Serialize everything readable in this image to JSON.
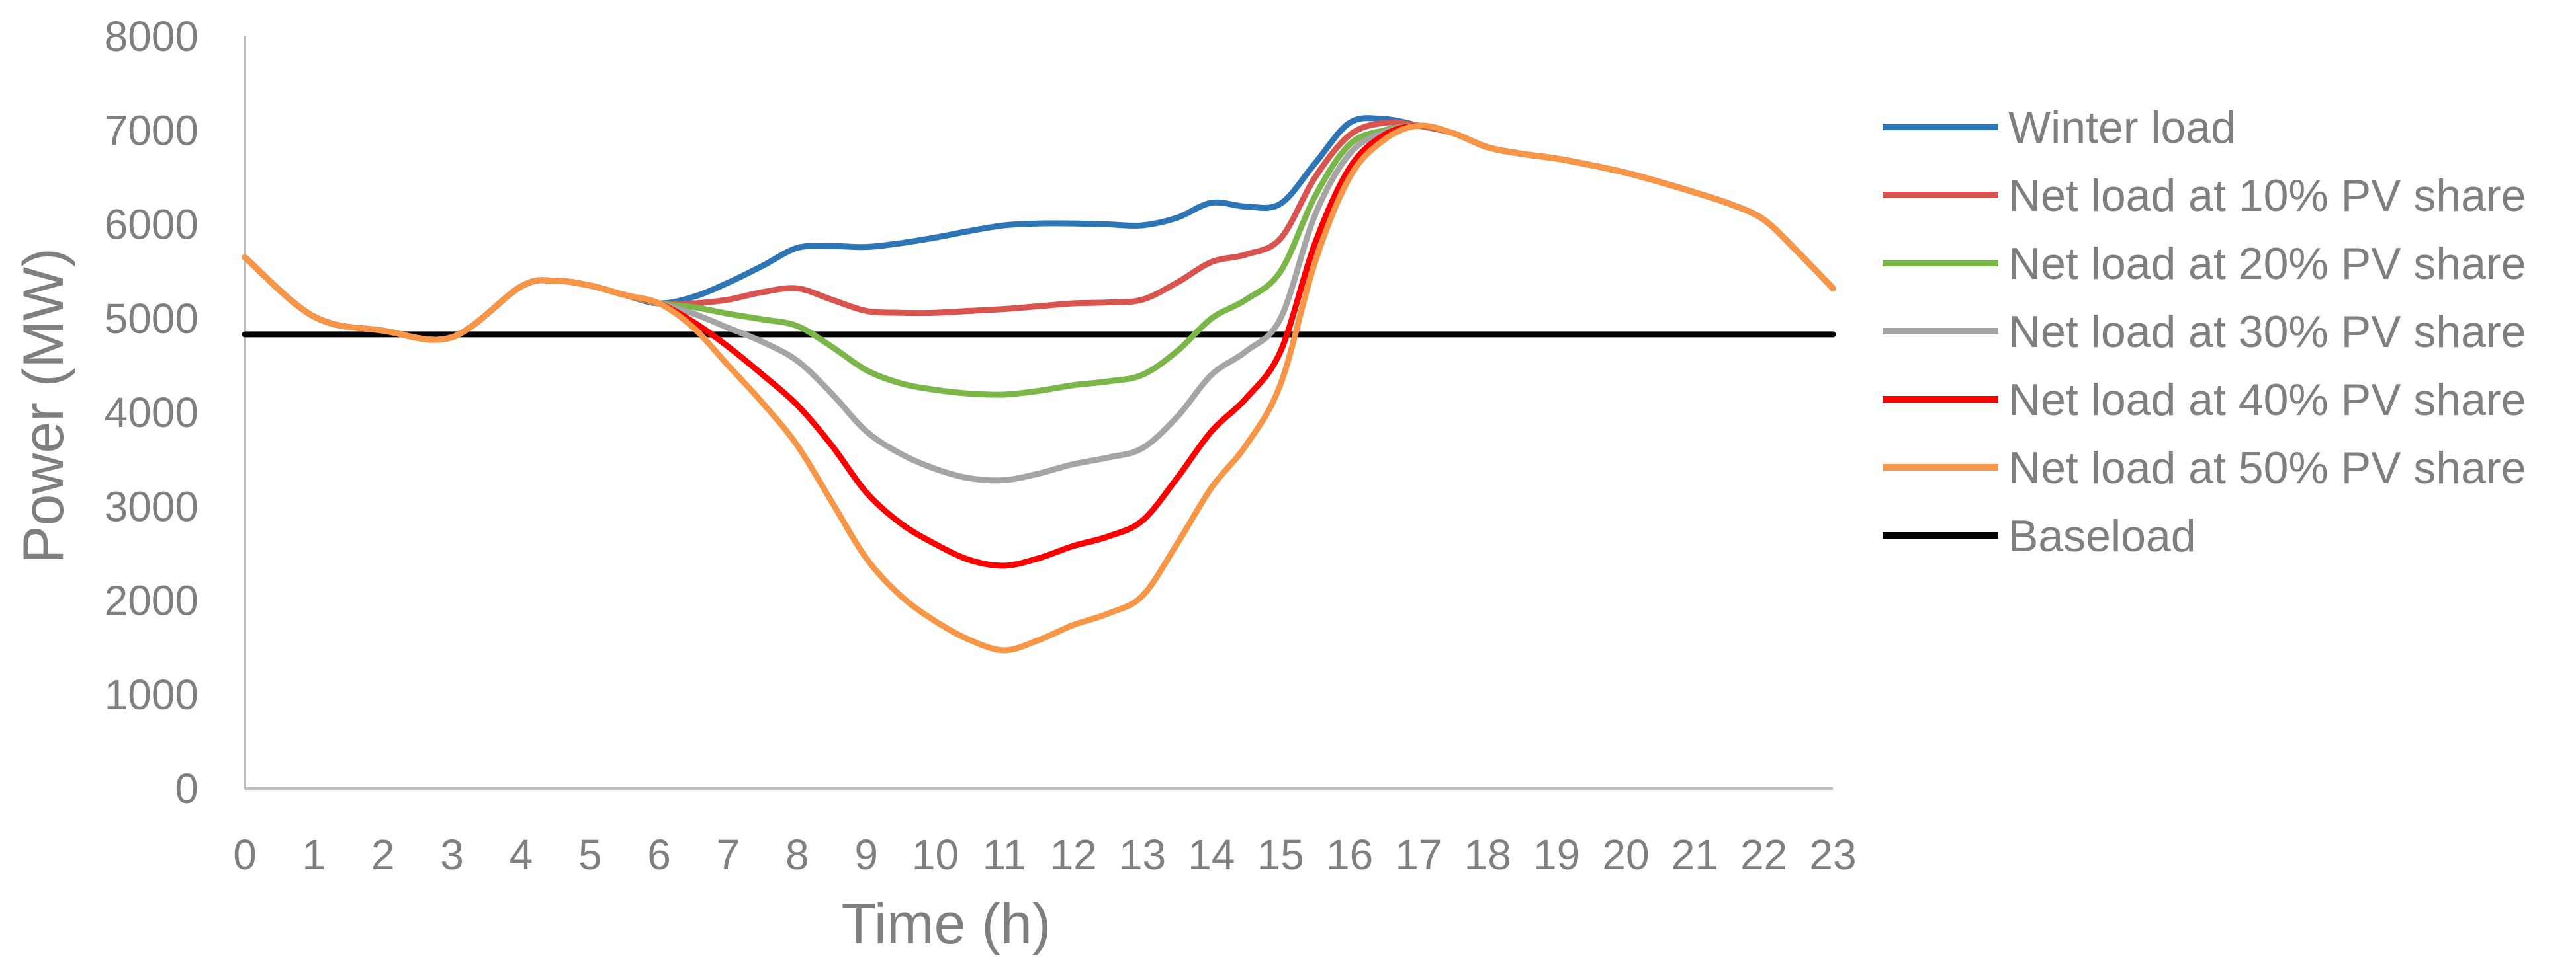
{
  "chart_data": {
    "type": "line",
    "title": "",
    "xlabel": "Time (h)",
    "ylabel": "Power (MW)",
    "xlim": [
      0,
      23
    ],
    "ylim": [
      0,
      8000
    ],
    "x_ticks": [
      0,
      1,
      2,
      3,
      4,
      5,
      6,
      7,
      8,
      9,
      10,
      11,
      12,
      13,
      14,
      15,
      16,
      17,
      18,
      19,
      20,
      21,
      22,
      23
    ],
    "y_ticks": [
      0,
      1000,
      2000,
      3000,
      4000,
      5000,
      6000,
      7000,
      8000
    ],
    "grid": false,
    "legend_position": "right",
    "series": [
      {
        "name": "Winter load",
        "color": "#2e75b6",
        "x": [
          0,
          1,
          2,
          3,
          4,
          4.5,
          5,
          5.5,
          6,
          6.5,
          7,
          7.5,
          8,
          8.5,
          9,
          9.5,
          10,
          10.5,
          11,
          11.5,
          12,
          12.5,
          13,
          13.5,
          14,
          14.5,
          15,
          15.5,
          16,
          16.5,
          17,
          17.5,
          18,
          18.5,
          19,
          19.5,
          20,
          20.5,
          21,
          21.5,
          22,
          22.5,
          23
        ],
        "values": [
          5650,
          5020,
          4870,
          4800,
          5340,
          5400,
          5350,
          5250,
          5160,
          5230,
          5380,
          5560,
          5750,
          5770,
          5760,
          5800,
          5860,
          5930,
          5990,
          6010,
          6010,
          6000,
          5990,
          6070,
          6230,
          6190,
          6220,
          6650,
          7080,
          7120,
          7050,
          6970,
          6820,
          6750,
          6700,
          6630,
          6550,
          6450,
          6340,
          6220,
          6050,
          5700,
          5320
        ]
      },
      {
        "name": "Net load at 10% PV share",
        "color": "#d9534f",
        "x": [
          0,
          1,
          2,
          3,
          4,
          4.5,
          5,
          5.5,
          6,
          6.5,
          7,
          7.5,
          8,
          8.5,
          9,
          9.5,
          10,
          10.5,
          11,
          11.5,
          12,
          12.5,
          13,
          13.5,
          14,
          14.5,
          15,
          15.5,
          16,
          16.5,
          17,
          17.5,
          18,
          18.5,
          19,
          19.5,
          20,
          20.5,
          21,
          21.5,
          22,
          22.5,
          23
        ],
        "values": [
          5650,
          5020,
          4870,
          4800,
          5340,
          5400,
          5350,
          5250,
          5160,
          5160,
          5200,
          5280,
          5320,
          5200,
          5080,
          5060,
          5060,
          5080,
          5100,
          5130,
          5160,
          5170,
          5200,
          5380,
          5600,
          5680,
          5850,
          6500,
          6950,
          7080,
          7050,
          6970,
          6820,
          6750,
          6700,
          6630,
          6550,
          6450,
          6340,
          6220,
          6050,
          5700,
          5320
        ]
      },
      {
        "name": "Net load at 20% PV share",
        "color": "#7ab648",
        "x": [
          0,
          1,
          2,
          3,
          4,
          4.5,
          5,
          5.5,
          6,
          6.5,
          7,
          7.5,
          8,
          8.5,
          9,
          9.5,
          10,
          10.5,
          11,
          11.5,
          12,
          12.5,
          13,
          13.5,
          14,
          14.5,
          15,
          15.5,
          16,
          16.5,
          17,
          17.5,
          18,
          18.5,
          19,
          19.5,
          20,
          20.5,
          21,
          21.5,
          22,
          22.5,
          23
        ],
        "values": [
          5650,
          5020,
          4870,
          4800,
          5340,
          5400,
          5350,
          5250,
          5160,
          5120,
          5050,
          4990,
          4920,
          4700,
          4450,
          4310,
          4240,
          4200,
          4190,
          4230,
          4290,
          4330,
          4400,
          4650,
          5000,
          5200,
          5500,
          6300,
          6850,
          7000,
          7050,
          6970,
          6820,
          6750,
          6700,
          6630,
          6550,
          6450,
          6340,
          6220,
          6050,
          5700,
          5320
        ]
      },
      {
        "name": "Net load at 30% PV share",
        "color": "#a5a5a5",
        "x": [
          0,
          1,
          2,
          3,
          4,
          4.5,
          5,
          5.5,
          6,
          6.5,
          7,
          7.5,
          8,
          8.5,
          9,
          9.5,
          10,
          10.5,
          11,
          11.5,
          12,
          12.5,
          13,
          13.5,
          14,
          14.5,
          15,
          15.5,
          16,
          16.5,
          17,
          17.5,
          18,
          18.5,
          19,
          19.5,
          20,
          20.5,
          21,
          21.5,
          22,
          22.5,
          23
        ],
        "values": [
          5650,
          5020,
          4870,
          4800,
          5340,
          5400,
          5350,
          5250,
          5160,
          5050,
          4900,
          4750,
          4550,
          4200,
          3800,
          3560,
          3400,
          3300,
          3280,
          3350,
          3450,
          3520,
          3620,
          3950,
          4400,
          4650,
          5000,
          6100,
          6750,
          6980,
          7050,
          6970,
          6820,
          6750,
          6700,
          6630,
          6550,
          6450,
          6340,
          6220,
          6050,
          5700,
          5320
        ]
      },
      {
        "name": "Net load at 40% PV share",
        "color": "#ff0000",
        "x": [
          0,
          1,
          2,
          3,
          4,
          4.5,
          5,
          5.5,
          6,
          6.5,
          7,
          7.5,
          8,
          8.5,
          9,
          9.5,
          10,
          10.5,
          11,
          11.5,
          12,
          12.5,
          13,
          13.5,
          14,
          14.5,
          15,
          15.5,
          16,
          16.5,
          17,
          17.5,
          18,
          18.5,
          19,
          19.5,
          20,
          20.5,
          21,
          21.5,
          22,
          22.5,
          23
        ],
        "values": [
          5650,
          5020,
          4870,
          4800,
          5340,
          5400,
          5350,
          5250,
          5160,
          4960,
          4700,
          4400,
          4080,
          3650,
          3150,
          2820,
          2600,
          2430,
          2370,
          2450,
          2580,
          2680,
          2850,
          3300,
          3800,
          4150,
          4650,
          5800,
          6600,
          6950,
          7050,
          6970,
          6820,
          6750,
          6700,
          6630,
          6550,
          6450,
          6340,
          6220,
          6050,
          5700,
          5320
        ]
      },
      {
        "name": "Net load at 50% PV share",
        "color": "#f79646",
        "x": [
          0,
          1,
          2,
          3,
          4,
          4.5,
          5,
          5.5,
          6,
          6.5,
          7,
          7.5,
          8,
          8.5,
          9,
          9.5,
          10,
          10.5,
          11,
          11.5,
          12,
          12.5,
          13,
          13.5,
          14,
          14.5,
          15,
          15.5,
          16,
          16.5,
          17,
          17.5,
          18,
          18.5,
          19,
          19.5,
          20,
          20.5,
          21,
          21.5,
          22,
          22.5,
          23
        ],
        "values": [
          5650,
          5020,
          4870,
          4800,
          5340,
          5400,
          5350,
          5250,
          5160,
          4900,
          4500,
          4100,
          3650,
          3050,
          2450,
          2050,
          1780,
          1580,
          1470,
          1580,
          1740,
          1860,
          2050,
          2600,
          3200,
          3650,
          4300,
          5600,
          6500,
          6900,
          7050,
          6970,
          6820,
          6750,
          6700,
          6630,
          6550,
          6450,
          6340,
          6220,
          6050,
          5700,
          5320
        ]
      },
      {
        "name": "Baseload",
        "color": "#000000",
        "x": [
          0,
          23
        ],
        "values": [
          4830,
          4830
        ]
      }
    ]
  }
}
